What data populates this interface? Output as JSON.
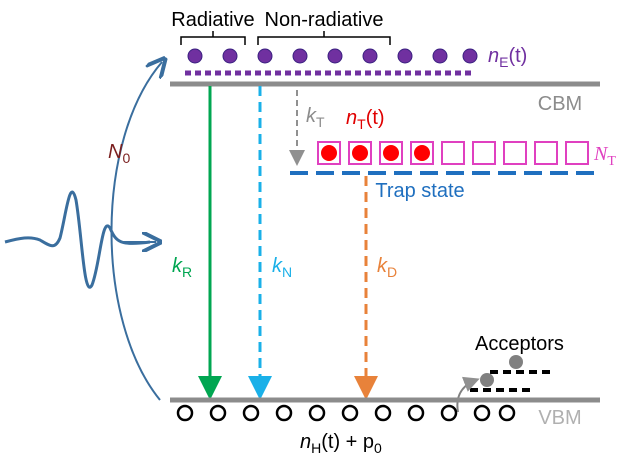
{
  "labels": {
    "radiative": "Radiative",
    "non_radiative": "Non-radiative",
    "n_e": {
      "main": "n",
      "sub": "E",
      "rest": "(t)"
    },
    "cbm": "CBM",
    "k_t": {
      "main": "k",
      "sub": "T"
    },
    "n_t": {
      "main": "n",
      "sub": "T",
      "rest": "(t)"
    },
    "big_n_t": {
      "main": "N",
      "sub": "T"
    },
    "trap_state": "Trap state",
    "n_0": {
      "main": "N",
      "sub": "0"
    },
    "k_r": {
      "main": "k",
      "sub": "R"
    },
    "k_n": {
      "main": "k",
      "sub": "N"
    },
    "k_d": {
      "main": "k",
      "sub": "D"
    },
    "acceptors": "Acceptors",
    "vbm": "VBM",
    "n_h": {
      "main": "n",
      "sub": "H",
      "rest": "(t) + p",
      "sub2": "0"
    }
  }
}
